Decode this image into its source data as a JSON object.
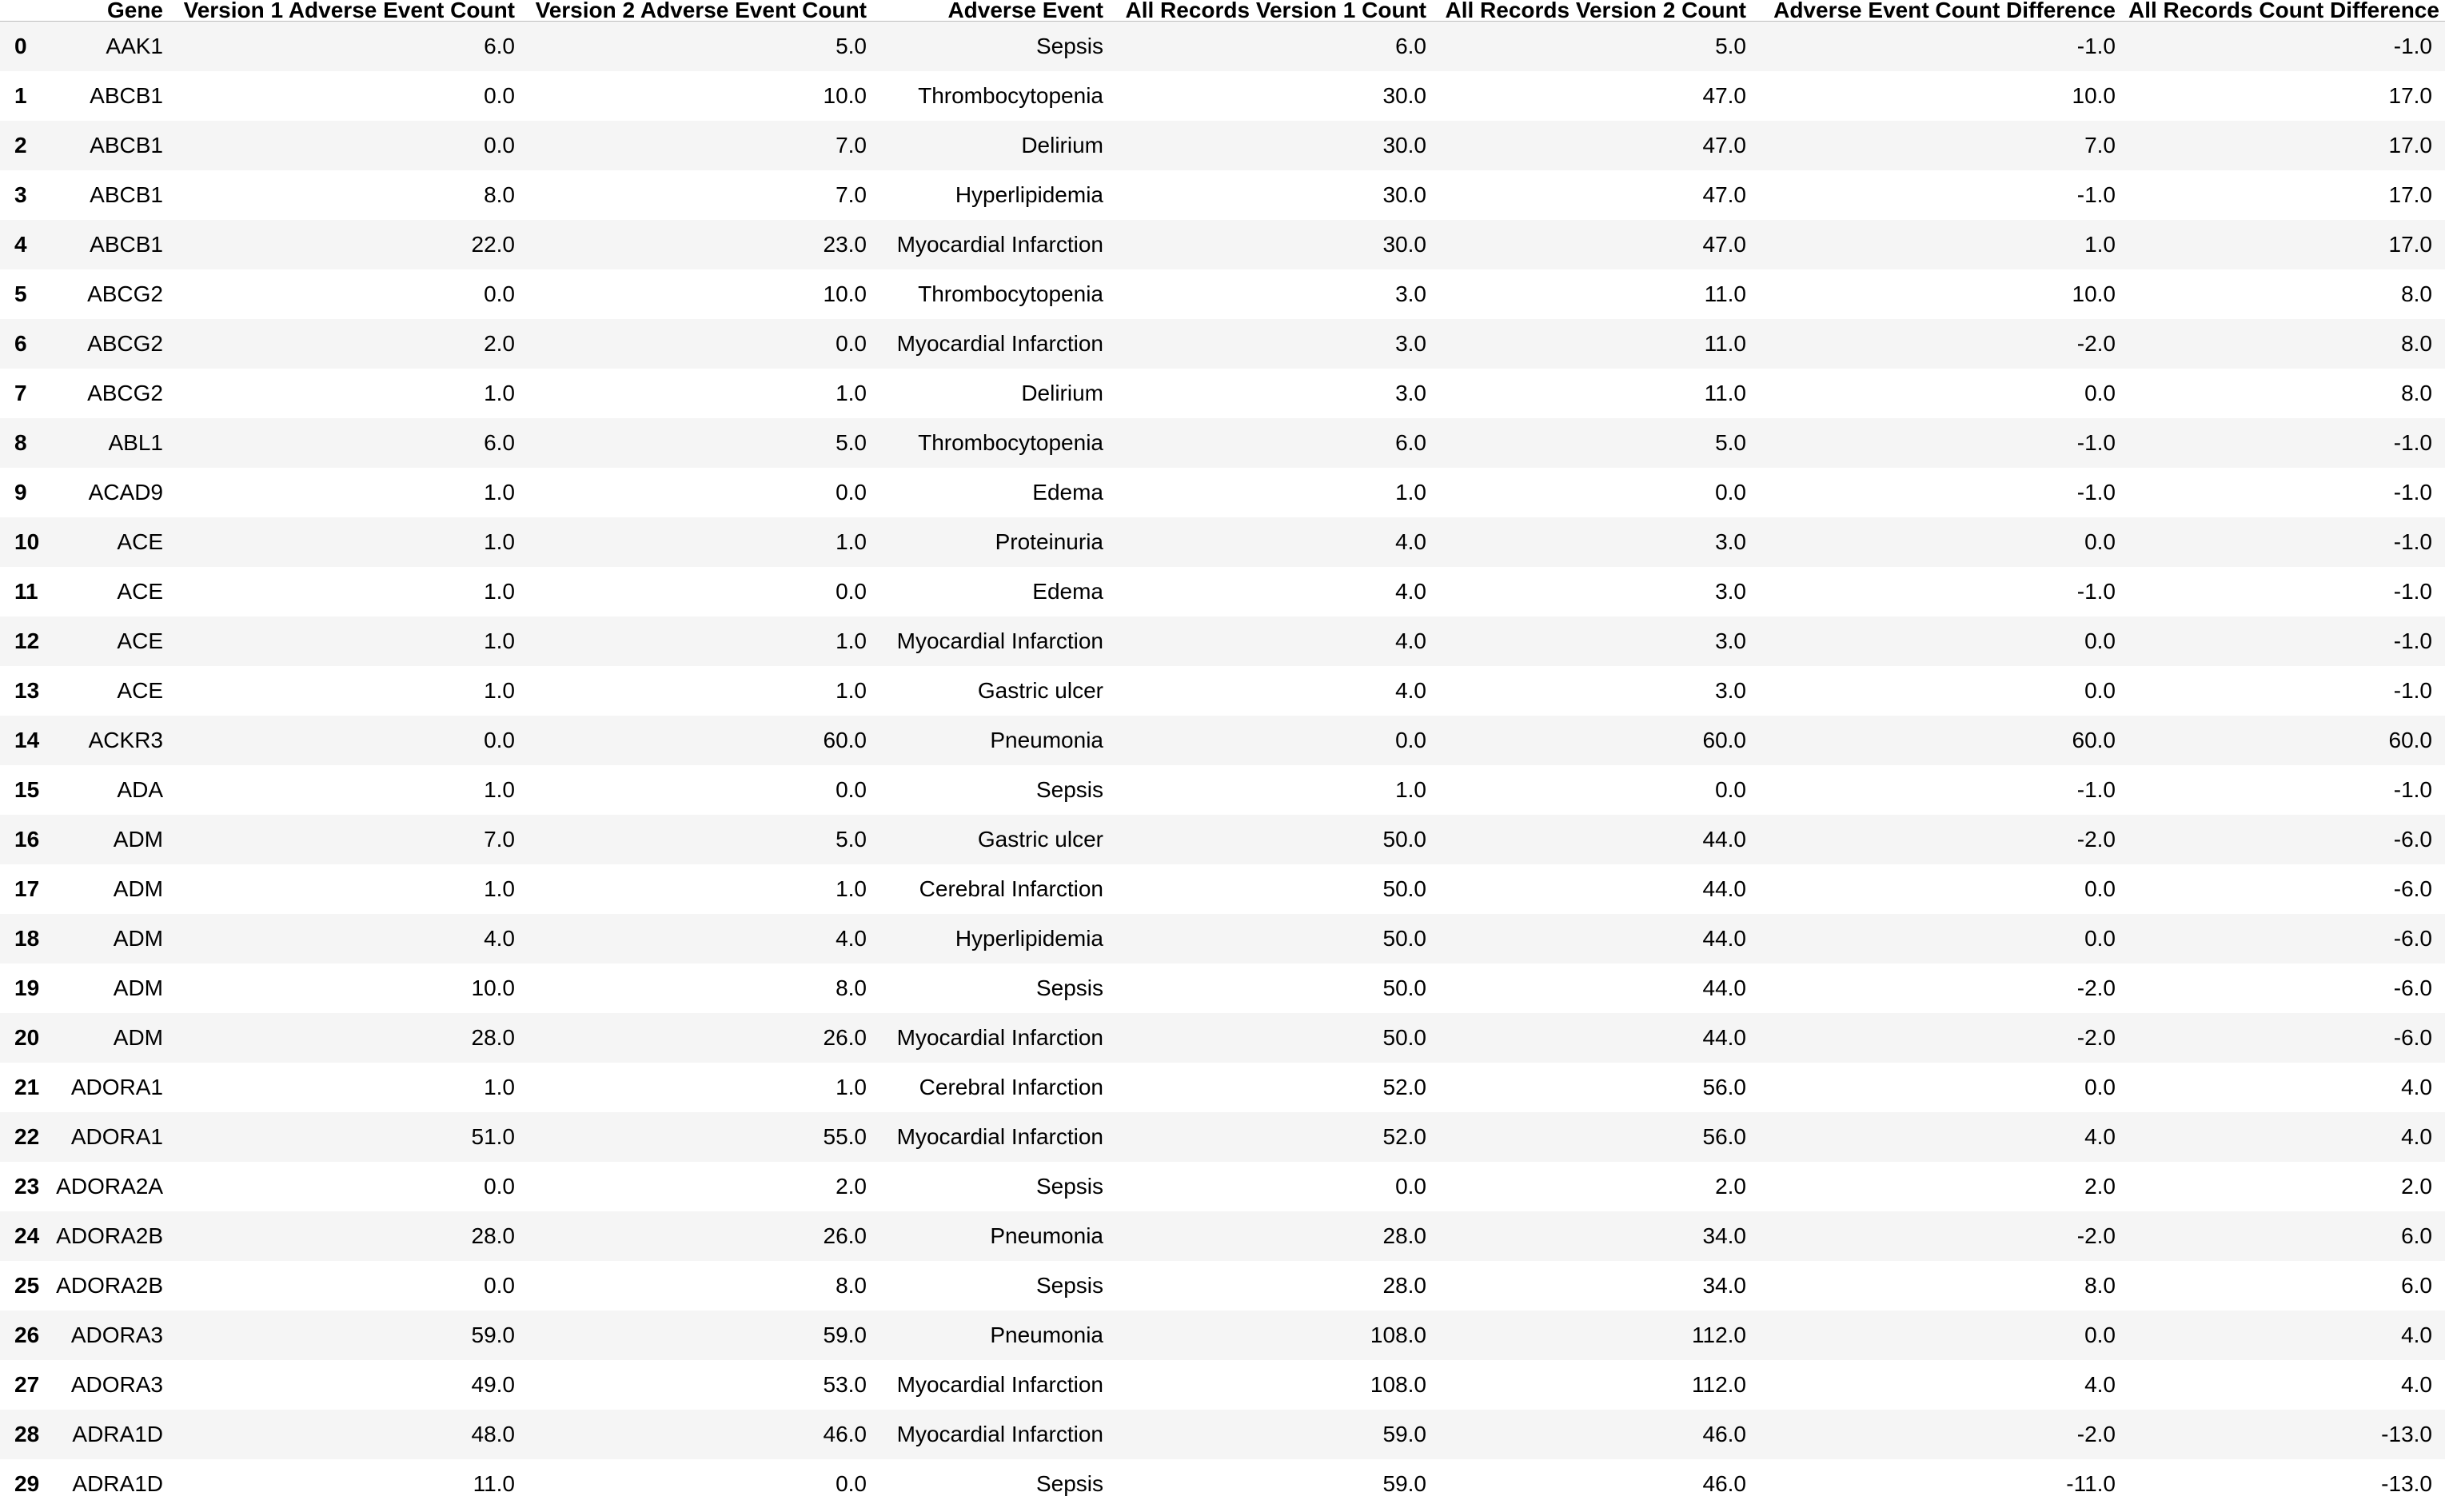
{
  "columns": {
    "index": "",
    "gene": "Gene",
    "v1_ae_count": "Version 1 Adverse Event Count",
    "v2_ae_count": "Version 2 Adverse Event Count",
    "adverse_event": "Adverse Event",
    "all_v1_count": "All Records Version 1 Count",
    "all_v2_count": "All Records Version 2 Count",
    "ae_count_diff": "Adverse Event Count Difference",
    "all_count_diff": "All Records Count Difference"
  },
  "rows": [
    [
      "0",
      "AAK1",
      "6.0",
      "5.0",
      "Sepsis",
      "6.0",
      "5.0",
      "-1.0",
      "-1.0"
    ],
    [
      "1",
      "ABCB1",
      "0.0",
      "10.0",
      "Thrombocytopenia",
      "30.0",
      "47.0",
      "10.0",
      "17.0"
    ],
    [
      "2",
      "ABCB1",
      "0.0",
      "7.0",
      "Delirium",
      "30.0",
      "47.0",
      "7.0",
      "17.0"
    ],
    [
      "3",
      "ABCB1",
      "8.0",
      "7.0",
      "Hyperlipidemia",
      "30.0",
      "47.0",
      "-1.0",
      "17.0"
    ],
    [
      "4",
      "ABCB1",
      "22.0",
      "23.0",
      "Myocardial Infarction",
      "30.0",
      "47.0",
      "1.0",
      "17.0"
    ],
    [
      "5",
      "ABCG2",
      "0.0",
      "10.0",
      "Thrombocytopenia",
      "3.0",
      "11.0",
      "10.0",
      "8.0"
    ],
    [
      "6",
      "ABCG2",
      "2.0",
      "0.0",
      "Myocardial Infarction",
      "3.0",
      "11.0",
      "-2.0",
      "8.0"
    ],
    [
      "7",
      "ABCG2",
      "1.0",
      "1.0",
      "Delirium",
      "3.0",
      "11.0",
      "0.0",
      "8.0"
    ],
    [
      "8",
      "ABL1",
      "6.0",
      "5.0",
      "Thrombocytopenia",
      "6.0",
      "5.0",
      "-1.0",
      "-1.0"
    ],
    [
      "9",
      "ACAD9",
      "1.0",
      "0.0",
      "Edema",
      "1.0",
      "0.0",
      "-1.0",
      "-1.0"
    ],
    [
      "10",
      "ACE",
      "1.0",
      "1.0",
      "Proteinuria",
      "4.0",
      "3.0",
      "0.0",
      "-1.0"
    ],
    [
      "11",
      "ACE",
      "1.0",
      "0.0",
      "Edema",
      "4.0",
      "3.0",
      "-1.0",
      "-1.0"
    ],
    [
      "12",
      "ACE",
      "1.0",
      "1.0",
      "Myocardial Infarction",
      "4.0",
      "3.0",
      "0.0",
      "-1.0"
    ],
    [
      "13",
      "ACE",
      "1.0",
      "1.0",
      "Gastric ulcer",
      "4.0",
      "3.0",
      "0.0",
      "-1.0"
    ],
    [
      "14",
      "ACKR3",
      "0.0",
      "60.0",
      "Pneumonia",
      "0.0",
      "60.0",
      "60.0",
      "60.0"
    ],
    [
      "15",
      "ADA",
      "1.0",
      "0.0",
      "Sepsis",
      "1.0",
      "0.0",
      "-1.0",
      "-1.0"
    ],
    [
      "16",
      "ADM",
      "7.0",
      "5.0",
      "Gastric ulcer",
      "50.0",
      "44.0",
      "-2.0",
      "-6.0"
    ],
    [
      "17",
      "ADM",
      "1.0",
      "1.0",
      "Cerebral Infarction",
      "50.0",
      "44.0",
      "0.0",
      "-6.0"
    ],
    [
      "18",
      "ADM",
      "4.0",
      "4.0",
      "Hyperlipidemia",
      "50.0",
      "44.0",
      "0.0",
      "-6.0"
    ],
    [
      "19",
      "ADM",
      "10.0",
      "8.0",
      "Sepsis",
      "50.0",
      "44.0",
      "-2.0",
      "-6.0"
    ],
    [
      "20",
      "ADM",
      "28.0",
      "26.0",
      "Myocardial Infarction",
      "50.0",
      "44.0",
      "-2.0",
      "-6.0"
    ],
    [
      "21",
      "ADORA1",
      "1.0",
      "1.0",
      "Cerebral Infarction",
      "52.0",
      "56.0",
      "0.0",
      "4.0"
    ],
    [
      "22",
      "ADORA1",
      "51.0",
      "55.0",
      "Myocardial Infarction",
      "52.0",
      "56.0",
      "4.0",
      "4.0"
    ],
    [
      "23",
      "ADORA2A",
      "0.0",
      "2.0",
      "Sepsis",
      "0.0",
      "2.0",
      "2.0",
      "2.0"
    ],
    [
      "24",
      "ADORA2B",
      "28.0",
      "26.0",
      "Pneumonia",
      "28.0",
      "34.0",
      "-2.0",
      "6.0"
    ],
    [
      "25",
      "ADORA2B",
      "0.0",
      "8.0",
      "Sepsis",
      "28.0",
      "34.0",
      "8.0",
      "6.0"
    ],
    [
      "26",
      "ADORA3",
      "59.0",
      "59.0",
      "Pneumonia",
      "108.0",
      "112.0",
      "0.0",
      "4.0"
    ],
    [
      "27",
      "ADORA3",
      "49.0",
      "53.0",
      "Myocardial Infarction",
      "108.0",
      "112.0",
      "4.0",
      "4.0"
    ],
    [
      "28",
      "ADRA1D",
      "48.0",
      "46.0",
      "Myocardial Infarction",
      "59.0",
      "46.0",
      "-2.0",
      "-13.0"
    ],
    [
      "29",
      "ADRA1D",
      "11.0",
      "0.0",
      "Sepsis",
      "59.0",
      "46.0",
      "-11.0",
      "-13.0"
    ]
  ]
}
